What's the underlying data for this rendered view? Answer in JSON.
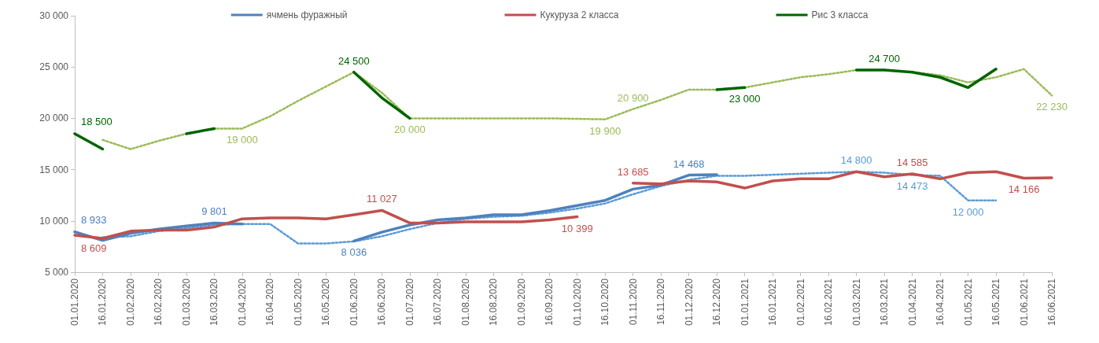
{
  "chart_data": {
    "type": "line",
    "categories": [
      "01.01.2020",
      "16.01.2020",
      "01.02.2020",
      "16.02.2020",
      "01.03.2020",
      "16.03.2020",
      "01.04.2020",
      "16.04.2020",
      "01.05.2020",
      "16.05.2020",
      "01.06.2020",
      "16.06.2020",
      "01.07.2020",
      "16.07.2020",
      "01.08.2020",
      "16.08.2020",
      "01.09.2020",
      "16.09.2020",
      "01.10.2020",
      "16.10.2020",
      "01.11.2020",
      "16.11.2020",
      "01.12.2020",
      "16.12.2020",
      "01.01.2021",
      "16.01.2021",
      "01.02.2021",
      "16.02.2021",
      "01.03.2021",
      "16.03.2021",
      "01.04.2021",
      "16.04.2021",
      "01.05.2021",
      "16.05.2021",
      "01.06.2021",
      "16.06.2021"
    ],
    "ylim": [
      5000,
      30000
    ],
    "yticks": [
      {
        "value": 5000,
        "label": "5 000"
      },
      {
        "value": 10000,
        "label": "10 000"
      },
      {
        "value": 15000,
        "label": "15 000"
      },
      {
        "value": 20000,
        "label": "20 000"
      },
      {
        "value": 25000,
        "label": "25 000"
      },
      {
        "value": 30000,
        "label": "30 000"
      }
    ],
    "grid": false,
    "legend": "top",
    "marker": "none",
    "series": [
      {
        "color": "#9bbb59",
        "line_style": "dotted",
        "values": [
          null,
          17900,
          17000,
          17800,
          18500,
          19000,
          19000,
          20200,
          21700,
          23100,
          24500,
          22500,
          20000,
          20000,
          20000,
          20000,
          20000,
          20000,
          19950,
          19900,
          20900,
          21800,
          22800,
          22800,
          23000,
          23500,
          24000,
          24300,
          24700,
          24700,
          24500,
          24200,
          23500,
          24000,
          24800,
          22230
        ],
        "value_labels": [
          null,
          null,
          null,
          null,
          null,
          null,
          "19 000",
          null,
          null,
          null,
          null,
          null,
          "20 000",
          null,
          null,
          null,
          null,
          null,
          null,
          "19 900",
          "20 900",
          null,
          null,
          null,
          null,
          null,
          null,
          null,
          null,
          null,
          null,
          null,
          null,
          null,
          null,
          "22 230"
        ]
      },
      {
        "color": "#5b9bd5",
        "line_style": "dotted",
        "values": [
          null,
          8400,
          8500,
          9000,
          9300,
          9600,
          9700,
          9700,
          7800,
          7800,
          8000,
          8500,
          9200,
          9800,
          10200,
          10400,
          10500,
          10800,
          11200,
          11700,
          12600,
          13400,
          14000,
          14400,
          14400,
          14500,
          14600,
          14700,
          14800,
          14700,
          14473,
          14400,
          12000,
          12000,
          null,
          null
        ],
        "value_labels": [
          null,
          null,
          null,
          null,
          null,
          null,
          null,
          null,
          null,
          null,
          null,
          null,
          null,
          null,
          null,
          null,
          null,
          null,
          null,
          null,
          null,
          null,
          null,
          null,
          null,
          null,
          null,
          null,
          "14 800",
          null,
          "14 473",
          null,
          "12 000",
          null,
          null,
          null
        ]
      },
      {
        "name": "ячмень фуражный",
        "color": "#4f81bd",
        "line_style": "solid",
        "values": [
          8933,
          8100,
          8800,
          9200,
          9500,
          9801,
          9700,
          null,
          null,
          null,
          8036,
          8900,
          9600,
          10100,
          10300,
          10600,
          10600,
          11000,
          11500,
          12000,
          13100,
          13500,
          14468,
          14500,
          null,
          null,
          null,
          null,
          null,
          null,
          null,
          null,
          null,
          null,
          null,
          null
        ],
        "value_labels": [
          "8 933",
          null,
          null,
          null,
          null,
          "9 801",
          null,
          null,
          null,
          null,
          "8 036",
          null,
          null,
          null,
          null,
          null,
          null,
          null,
          null,
          null,
          null,
          null,
          "14 468",
          null,
          null,
          null,
          null,
          null,
          null,
          null,
          null,
          null,
          null,
          null,
          null,
          null
        ]
      },
      {
        "name": "Кукуруза 2 класса",
        "color": "#c0504d",
        "line_style": "solid",
        "values": [
          8609,
          8300,
          9000,
          9100,
          9100,
          9400,
          10200,
          10300,
          10300,
          10200,
          10600,
          11027,
          9800,
          9800,
          9900,
          9900,
          9900,
          10100,
          10399,
          null,
          13685,
          13600,
          13900,
          13800,
          13200,
          13900,
          14100,
          14100,
          14800,
          14300,
          14585,
          14100,
          14700,
          14800,
          14166,
          14200
        ],
        "value_labels": [
          "8 609",
          null,
          null,
          null,
          null,
          null,
          null,
          null,
          null,
          null,
          null,
          "11 027",
          null,
          null,
          null,
          null,
          null,
          null,
          "10 399",
          null,
          "13 685",
          null,
          null,
          null,
          null,
          null,
          null,
          null,
          null,
          null,
          "14 585",
          null,
          null,
          null,
          "14 166",
          null
        ]
      },
      {
        "name": "Рис 3 класса",
        "color": "#006400",
        "line_style": "solid",
        "values": [
          18500,
          17000,
          null,
          null,
          18500,
          19000,
          null,
          null,
          null,
          null,
          24500,
          22000,
          20000,
          null,
          null,
          null,
          null,
          null,
          null,
          null,
          null,
          null,
          null,
          22800,
          23000,
          null,
          null,
          null,
          24700,
          24700,
          24500,
          24000,
          23000,
          24800,
          null,
          null
        ],
        "value_labels": [
          "18 500",
          null,
          null,
          null,
          null,
          null,
          null,
          null,
          null,
          null,
          "24 500",
          null,
          null,
          null,
          null,
          null,
          null,
          null,
          null,
          null,
          null,
          null,
          null,
          null,
          "23 000",
          null,
          null,
          null,
          null,
          "24 700",
          null,
          null,
          null,
          null,
          null,
          null
        ]
      }
    ]
  }
}
